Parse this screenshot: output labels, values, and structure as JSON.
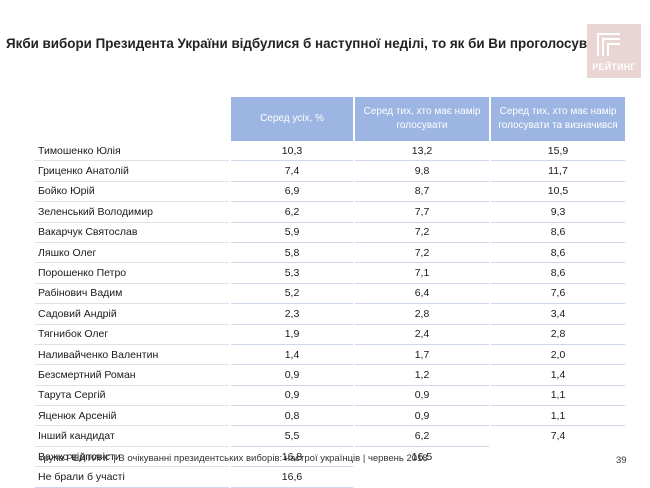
{
  "title": "Якби вибори Президента України відбулися б наступної неділі, то як би Ви проголосували?",
  "logo": {
    "word": "РЕЙТИНГ",
    "bg_color": "#e9d5d3"
  },
  "chart_data": {
    "type": "table",
    "title": "Якби вибори Президента України відбулися б наступної неділі, то як би Ви проголосували?",
    "columns": [
      "Серед усіх, %",
      "Серед тих, хто має намір голосувати",
      "Серед тих, хто має намір голосувати та визначився"
    ],
    "rows": [
      {
        "name": "Тимошенко Юлія",
        "values": [
          "10,3",
          "13,2",
          "15,9"
        ]
      },
      {
        "name": "Гриценко Анатолій",
        "values": [
          "7,4",
          "9,8",
          "11,7"
        ]
      },
      {
        "name": "Бойко Юрій",
        "values": [
          "6,9",
          "8,7",
          "10,5"
        ]
      },
      {
        "name": "Зеленський Володимир",
        "values": [
          "6,2",
          "7,7",
          "9,3"
        ]
      },
      {
        "name": "Вакарчук Святослав",
        "values": [
          "5,9",
          "7,2",
          "8,6"
        ]
      },
      {
        "name": "Ляшко Олег",
        "values": [
          "5,8",
          "7,2",
          "8,6"
        ]
      },
      {
        "name": "Порошенко Петро",
        "values": [
          "5,3",
          "7,1",
          "8,6"
        ]
      },
      {
        "name": "Рабінович Вадим",
        "values": [
          "5,2",
          "6,4",
          "7,6"
        ]
      },
      {
        "name": "Садовий Андрій",
        "values": [
          "2,3",
          "2,8",
          "3,4"
        ]
      },
      {
        "name": "Тягнибок Олег",
        "values": [
          "1,9",
          "2,4",
          "2,8"
        ]
      },
      {
        "name": "Наливайченко Валентин",
        "values": [
          "1,4",
          "1,7",
          "2,0"
        ]
      },
      {
        "name": "Безсмертний Роман",
        "values": [
          "0,9",
          "1,2",
          "1,4"
        ]
      },
      {
        "name": "Тарута Сергій",
        "values": [
          "0,9",
          "0,9",
          "1,1"
        ]
      },
      {
        "name": "Яценюк Арсеній",
        "values": [
          "0,8",
          "0,9",
          "1,1"
        ]
      },
      {
        "name": "Інший кандидат",
        "values": [
          "5,5",
          "6,2",
          "7,4"
        ]
      },
      {
        "name": "Важко відповісти",
        "values": [
          "16,8",
          "16,5",
          ""
        ]
      },
      {
        "name": "Не брали б участі",
        "values": [
          "16,6",
          "",
          ""
        ]
      }
    ]
  },
  "colors": {
    "header_bg": "#9cb5e2",
    "header_text": "#ffffff",
    "rule": "#cfd8ea"
  },
  "footer": "група РЕЙТИНГ  | В очікуванні президентських виборів: настрої українців |  червень 2018",
  "page_number": "39"
}
